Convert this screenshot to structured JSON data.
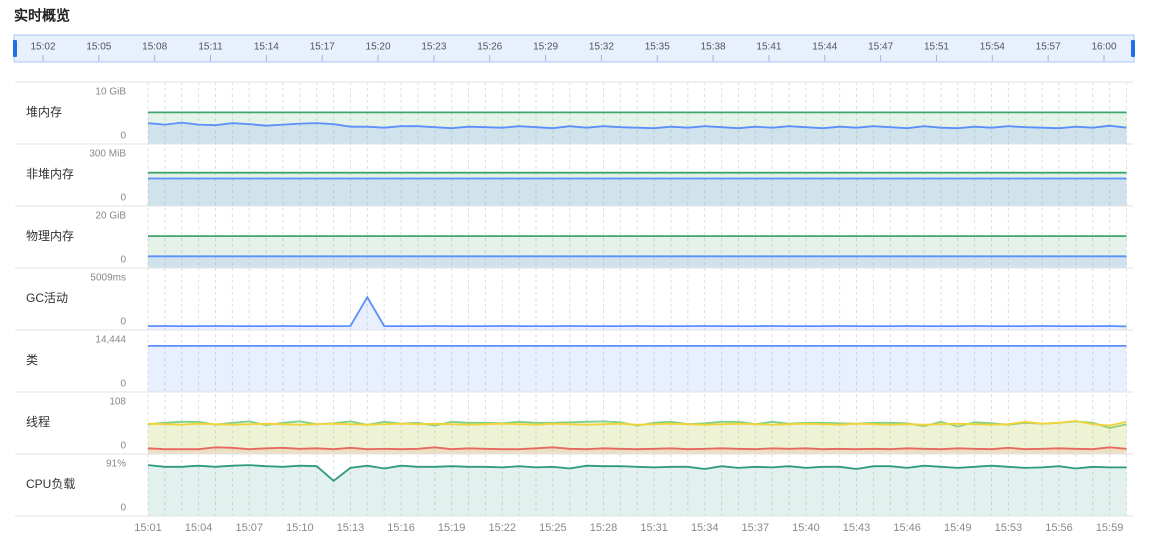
{
  "chart_data": {
    "type": "line",
    "title": "实时概览",
    "slider_labels": [
      "15:02",
      "15:05",
      "15:08",
      "15:11",
      "15:14",
      "15:17",
      "15:20",
      "15:23",
      "15:26",
      "15:29",
      "15:32",
      "15:35",
      "15:38",
      "15:41",
      "15:44",
      "15:47",
      "15:51",
      "15:54",
      "15:57",
      "16:00"
    ],
    "categories": [
      "15:01",
      null,
      null,
      "15:04",
      null,
      null,
      "15:07",
      null,
      null,
      "15:10",
      null,
      null,
      "15:13",
      null,
      null,
      "15:16",
      null,
      null,
      "15:19",
      null,
      null,
      "15:22",
      null,
      null,
      "15:25",
      null,
      null,
      "15:28",
      null,
      null,
      "15:31",
      null,
      null,
      "15:34",
      null,
      null,
      "15:37",
      null,
      null,
      "15:40",
      null,
      null,
      "15:43",
      null,
      null,
      "15:46",
      null,
      null,
      "15:49",
      null,
      null,
      "15:53",
      null,
      null,
      "15:56",
      null,
      null,
      "15:59",
      null
    ],
    "grid": true,
    "panels": [
      {
        "label": "堆内存",
        "ylim": [
          0,
          10
        ],
        "yticks": [
          0,
          {
            "value": 10,
            "label": "10 GiB"
          }
        ],
        "series": [
          {
            "color": "#3fa56c",
            "values": [
              6,
              6,
              6,
              6,
              6,
              6,
              6,
              6,
              6,
              6,
              6,
              6,
              6,
              6,
              6,
              6,
              6,
              6,
              6,
              6,
              6,
              6,
              6,
              6,
              6,
              6,
              6,
              6,
              6,
              6,
              6,
              6,
              6,
              6,
              6,
              6,
              6,
              6,
              6,
              6,
              6,
              6,
              6,
              6,
              6,
              6,
              6,
              6,
              6,
              6,
              6,
              6,
              6,
              6,
              6,
              6,
              6,
              6,
              6
            ]
          },
          {
            "color": "#5b8ff9",
            "values": [
              3.9,
              3.6,
              4.0,
              3.6,
              3.5,
              3.9,
              3.7,
              3.4,
              3.6,
              3.8,
              3.9,
              3.7,
              3.2,
              3.2,
              3.0,
              3.3,
              3.3,
              3.1,
              2.9,
              3.2,
              3.1,
              3.0,
              3.3,
              3.1,
              2.9,
              3.3,
              3.0,
              3.3,
              3.1,
              3.0,
              2.9,
              3.2,
              3.0,
              3.3,
              3.1,
              2.9,
              3.2,
              3.0,
              3.3,
              3.1,
              2.9,
              3.2,
              3.0,
              3.3,
              3.1,
              2.9,
              3.3,
              3.0,
              2.9,
              3.2,
              3.0,
              3.3,
              3.1,
              3.0,
              2.9,
              3.2,
              3.0,
              3.4,
              3.0
            ]
          }
        ]
      },
      {
        "label": "非堆内存",
        "ylim": [
          0,
          300
        ],
        "yticks": [
          0,
          {
            "value": 300,
            "label": "300 MiB"
          }
        ],
        "series": [
          {
            "color": "#3fa56c",
            "values": [
              190,
              190,
              190,
              190,
              190,
              190,
              190,
              190,
              190,
              190,
              190,
              190,
              190,
              190,
              190,
              190,
              190,
              190,
              190,
              190,
              190,
              190,
              190,
              190,
              190,
              190,
              190,
              190,
              190,
              190,
              190,
              190,
              190,
              190,
              190,
              190,
              190,
              190,
              190,
              190,
              190,
              190,
              190,
              190,
              190,
              190,
              190,
              190,
              190,
              190,
              190,
              190,
              190,
              190,
              190,
              190,
              190,
              190,
              190
            ]
          },
          {
            "color": "#5b8ff9",
            "values": [
              156,
              156,
              156,
              156,
              156,
              156,
              156,
              156,
              156,
              156,
              156,
              156,
              156,
              156,
              156,
              156,
              156,
              156,
              156,
              156,
              156,
              156,
              156,
              156,
              156,
              156,
              156,
              156,
              156,
              156,
              156,
              156,
              156,
              156,
              156,
              156,
              156,
              156,
              156,
              156,
              156,
              156,
              156,
              156,
              156,
              156,
              156,
              156,
              156,
              156,
              156,
              156,
              156,
              156,
              156,
              156,
              156,
              156,
              156
            ]
          }
        ]
      },
      {
        "label": "物理内存",
        "ylim": [
          0,
          20
        ],
        "yticks": [
          0,
          {
            "value": 20,
            "label": "20 GiB"
          }
        ],
        "series": [
          {
            "color": "#3fa56c",
            "values": [
              12.1,
              12.1,
              12.1,
              12.1,
              12.1,
              12.1,
              12.1,
              12.1,
              12.1,
              12.1,
              12.1,
              12.1,
              12.1,
              12.1,
              12.1,
              12.1,
              12.1,
              12.1,
              12.1,
              12.1,
              12.1,
              12.1,
              12.1,
              12.1,
              12.1,
              12.1,
              12.1,
              12.1,
              12.1,
              12.1,
              12.1,
              12.1,
              12.1,
              12.1,
              12.1,
              12.1,
              12.1,
              12.1,
              12.1,
              12.1,
              12.1,
              12.1,
              12.1,
              12.1,
              12.1,
              12.1,
              12.1,
              12.1,
              12.1,
              12.1,
              12.1,
              12.1,
              12.1,
              12.1,
              12.1,
              12.1,
              12.1,
              12.1,
              12.1
            ]
          },
          {
            "color": "#5b8ff9",
            "values": [
              4.2,
              4.2,
              4.2,
              4.2,
              4.2,
              4.2,
              4.2,
              4.2,
              4.2,
              4.2,
              4.2,
              4.2,
              4.2,
              4.2,
              4.2,
              4.2,
              4.2,
              4.2,
              4.2,
              4.2,
              4.2,
              4.2,
              4.2,
              4.2,
              4.2,
              4.2,
              4.2,
              4.2,
              4.2,
              4.2,
              4.2,
              4.2,
              4.2,
              4.2,
              4.2,
              4.2,
              4.2,
              4.2,
              4.2,
              4.2,
              4.2,
              4.2,
              4.2,
              4.2,
              4.2,
              4.2,
              4.2,
              4.2,
              4.2,
              4.2,
              4.2,
              4.2,
              4.2,
              4.2,
              4.2,
              4.2,
              4.2,
              4.2,
              4.2
            ]
          }
        ]
      },
      {
        "label": "GC活动",
        "ylim": [
          0,
          5009
        ],
        "yticks": [
          0,
          {
            "value": 5009,
            "label": "5009ms"
          }
        ],
        "series": [
          {
            "color": "#5b8ff9",
            "values": [
              280,
              290,
              285,
              280,
              290,
              285,
              280,
              285,
              290,
              280,
              285,
              280,
              290,
              3119,
              280,
              285,
              280,
              290,
              285,
              280,
              285,
              290,
              280,
              285,
              280,
              290,
              285,
              280,
              285,
              290,
              280,
              285,
              280,
              290,
              285,
              280,
              285,
              290,
              280,
              285,
              280,
              290,
              285,
              280,
              285,
              290,
              280,
              285,
              280,
              290,
              285,
              280,
              285,
              290,
              280,
              285,
              280,
              290,
              260
            ]
          }
        ]
      },
      {
        "label": "类",
        "ylim": [
          0,
          14444
        ],
        "yticks": [
          0,
          {
            "value": 14444,
            "label": "14,444"
          }
        ],
        "series": [
          {
            "color": "#5b8ff9",
            "values": [
              12777,
              12777,
              12777,
              12777,
              12777,
              12777,
              12777,
              12777,
              12777,
              12777,
              12777,
              12777,
              12777,
              12777,
              12777,
              12777,
              12777,
              12777,
              12777,
              12777,
              12777,
              12777,
              12777,
              12777,
              12777,
              12777,
              12777,
              12777,
              12777,
              12777,
              12777,
              12777,
              12777,
              12777,
              12777,
              12777,
              12777,
              12777,
              12777,
              12777,
              12777,
              12777,
              12777,
              12777,
              12777,
              12777,
              12777,
              12777,
              12777,
              12777,
              12777,
              12777,
              12777,
              12777,
              12777,
              12777,
              12777,
              12777,
              12777
            ]
          }
        ]
      },
      {
        "label": "线程",
        "ylim": [
          0,
          108
        ],
        "yticks": [
          0,
          108
        ],
        "series": [
          {
            "color": "#7ed08a",
            "values": [
              61,
              64,
              66,
              66,
              60,
              64,
              67,
              59,
              64,
              67,
              61,
              63,
              67,
              60,
              66,
              62,
              64,
              58,
              66,
              64,
              64,
              63,
              66,
              64,
              64,
              65,
              66,
              67,
              65,
              58,
              64,
              66,
              61,
              63,
              66,
              66,
              61,
              66,
              62,
              64,
              64,
              63,
              62,
              64,
              64,
              63,
              57,
              66,
              56,
              65,
              63,
              60,
              64,
              62,
              64,
              67,
              64,
              53,
              61
            ]
          },
          {
            "color": "#f2d43a",
            "values": [
              62,
              61,
              60,
              62,
              61,
              60,
              61,
              62,
              61,
              60,
              61,
              62,
              61,
              60,
              61,
              62,
              61,
              62,
              61,
              60,
              61,
              62,
              61,
              60,
              62,
              61,
              60,
              61,
              62,
              60,
              61,
              62,
              61,
              60,
              61,
              62,
              61,
              60,
              61,
              62,
              61,
              60,
              62,
              61,
              60,
              61,
              60,
              61,
              62,
              61,
              60,
              61,
              66,
              62,
              64,
              68,
              61,
              58,
              66
            ]
          },
          {
            "color": "#e8685f",
            "values": [
              10,
              8,
              8,
              8,
              12,
              11,
              8,
              10,
              11,
              9,
              10,
              8,
              11,
              8,
              9,
              8,
              9,
              12,
              8,
              10,
              9,
              8,
              8,
              10,
              12,
              9,
              8,
              10,
              9,
              8,
              9,
              10,
              8,
              9,
              10,
              9,
              8,
              10,
              9,
              10,
              8,
              9,
              8,
              9,
              8,
              10,
              9,
              8,
              10,
              9,
              8,
              11,
              8,
              9,
              10,
              9,
              8,
              12,
              9
            ]
          }
        ]
      },
      {
        "label": "CPU负载",
        "ylim": [
          0,
          91
        ],
        "yticks": [
          0,
          {
            "value": 91,
            "label": "91%"
          }
        ],
        "series": [
          {
            "color": "#2f9a7f",
            "values": [
              89,
              86,
              86,
              88,
              86,
              88,
              89,
              87,
              86,
              88,
              87,
              61,
              84,
              88,
              83,
              88,
              86,
              86,
              87,
              86,
              86,
              85,
              87,
              85,
              86,
              83,
              88,
              87,
              87,
              86,
              85,
              86,
              86,
              82,
              87,
              84,
              86,
              85,
              87,
              84,
              86,
              86,
              82,
              87,
              87,
              84,
              88,
              86,
              84,
              86,
              88,
              86,
              84,
              85,
              87,
              83,
              86,
              85,
              85
            ]
          }
        ]
      }
    ]
  }
}
